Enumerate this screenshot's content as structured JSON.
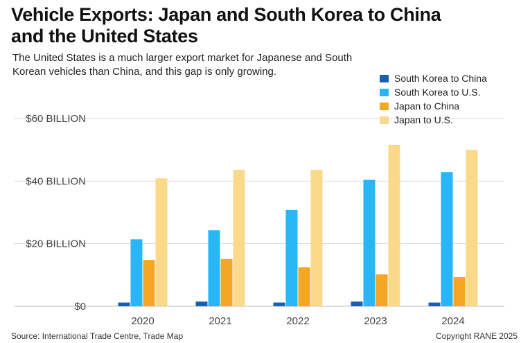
{
  "title": "Vehicle Exports: Japan and South Korea to China and the United States",
  "subtitle": "The United States is a much larger export market for Japanese and South Korean vehicles than China, and this gap is only growing.",
  "source": "Source: International Trade Centre, Trade Map",
  "copyright": "Copyright RANE 2025",
  "legend": [
    {
      "label": "South Korea to China",
      "color": "#1a5fb0"
    },
    {
      "label": "South Korea to U.S.",
      "color": "#29b6f6"
    },
    {
      "label": "Japan to China",
      "color": "#f5a623"
    },
    {
      "label": "Japan to U.S.",
      "color": "#fbd98a"
    }
  ],
  "chart_data": {
    "type": "bar",
    "categories": [
      "2020",
      "2021",
      "2022",
      "2023",
      "2024"
    ],
    "series": [
      {
        "name": "South Korea to China",
        "color": "#1a5fb0",
        "values": [
          1.2,
          1.5,
          1.2,
          1.5,
          1.2
        ]
      },
      {
        "name": "South Korea to U.S.",
        "color": "#29b6f6",
        "values": [
          21.4,
          24.3,
          30.8,
          40.4,
          42.9
        ]
      },
      {
        "name": "Japan to China",
        "color": "#f5a623",
        "values": [
          14.8,
          15.1,
          12.5,
          10.2,
          9.3
        ]
      },
      {
        "name": "Japan to U.S.",
        "color": "#fbd98a",
        "values": [
          40.9,
          43.6,
          43.6,
          51.6,
          50.0
        ]
      }
    ],
    "ylim": [
      0,
      60
    ],
    "yticks": [
      0,
      20,
      40,
      60
    ],
    "ytick_labels": [
      "$0",
      "$20 BILLION",
      "$40 BILLION",
      "$60 BILLION"
    ],
    "grid": true,
    "legend_position": "top-right"
  }
}
